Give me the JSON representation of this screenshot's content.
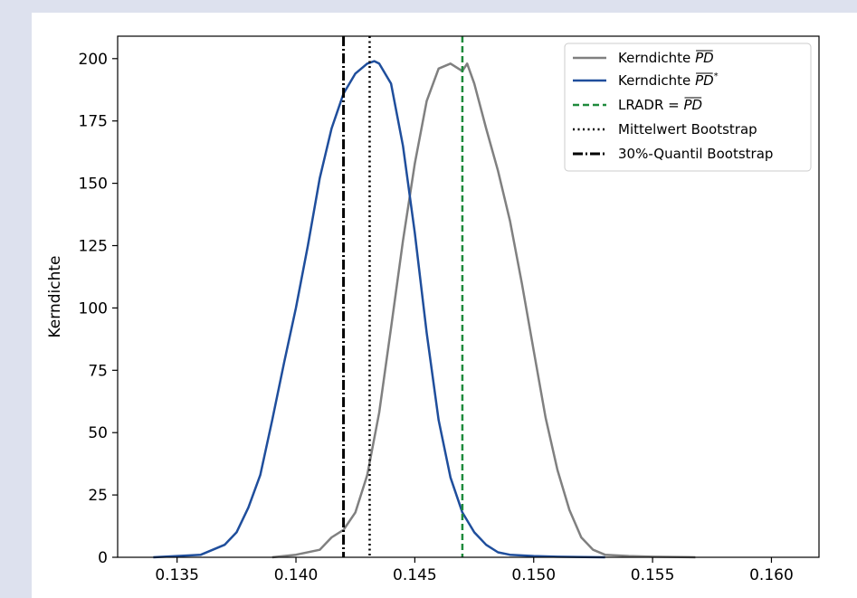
{
  "chart_data": {
    "type": "line",
    "ylabel": "Kerndichte",
    "xlim": [
      0.1325,
      0.162
    ],
    "ylim": [
      0,
      209
    ],
    "x_ticks": [
      "0.135",
      "0.140",
      "0.145",
      "0.150",
      "0.155",
      "0.160"
    ],
    "x_tick_values": [
      0.135,
      0.14,
      0.145,
      0.15,
      0.155,
      0.16
    ],
    "y_ticks": [
      "0",
      "25",
      "50",
      "75",
      "100",
      "125",
      "150",
      "175",
      "200"
    ],
    "y_tick_values": [
      0,
      25,
      50,
      75,
      100,
      125,
      150,
      175,
      200
    ],
    "grid": false,
    "legend_position": "top-right",
    "series": [
      {
        "name": "Kerndichte PD",
        "label_main": "Kerndichte ",
        "label_over": "PD",
        "label_sup": "",
        "style": "solid",
        "color": "#808080",
        "x": [
          0.139,
          0.14,
          0.141,
          0.1415,
          0.142,
          0.1425,
          0.143,
          0.1435,
          0.144,
          0.1445,
          0.145,
          0.1455,
          0.146,
          0.1465,
          0.147,
          0.1472,
          0.1475,
          0.148,
          0.1485,
          0.149,
          0.1495,
          0.15,
          0.1505,
          0.151,
          0.1515,
          0.152,
          0.1525,
          0.153,
          0.154,
          0.155,
          0.1568
        ],
        "y": [
          0,
          1,
          3,
          8,
          11,
          18,
          33,
          58,
          92,
          127,
          158,
          183,
          196,
          198,
          195,
          198,
          190,
          172,
          155,
          135,
          110,
          83,
          56,
          35,
          19,
          8,
          3,
          1,
          0.5,
          0.2,
          0
        ]
      },
      {
        "name": "Kerndichte PD*",
        "label_main": "Kerndichte ",
        "label_over": "PD",
        "label_sup": "*",
        "style": "solid",
        "color": "#1f4e9c",
        "x": [
          0.134,
          0.135,
          0.136,
          0.137,
          0.1375,
          0.138,
          0.1385,
          0.139,
          0.1395,
          0.14,
          0.1405,
          0.141,
          0.1415,
          0.142,
          0.1425,
          0.143,
          0.1433,
          0.1435,
          0.144,
          0.1445,
          0.145,
          0.1455,
          0.146,
          0.1465,
          0.147,
          0.1475,
          0.148,
          0.1485,
          0.149,
          0.15,
          0.151,
          0.153
        ],
        "y": [
          0,
          0.5,
          1,
          5,
          10,
          20,
          33,
          55,
          78,
          100,
          125,
          152,
          172,
          186,
          194,
          198,
          199,
          198,
          190,
          165,
          130,
          90,
          55,
          32,
          18,
          10,
          5,
          2,
          1,
          0.5,
          0.2,
          0
        ]
      },
      {
        "name": "LRADR = PD",
        "label_main": "LRADR = ",
        "label_over": "PD",
        "label_sup": "",
        "style": "dashed",
        "color": "#1e8a3c",
        "vline_x": 0.147
      },
      {
        "name": "Mittelwert Bootstrap",
        "label_main": "Mittelwert Bootstrap",
        "label_over": "",
        "label_sup": "",
        "style": "dotted",
        "color": "#000000",
        "vline_x": 0.1431
      },
      {
        "name": "30%-Quantil Bootstrap",
        "label_main": "30%-Quantil Bootstrap",
        "label_over": "",
        "label_sup": "",
        "style": "dashdot",
        "color": "#000000",
        "vline_x": 0.142
      }
    ]
  }
}
